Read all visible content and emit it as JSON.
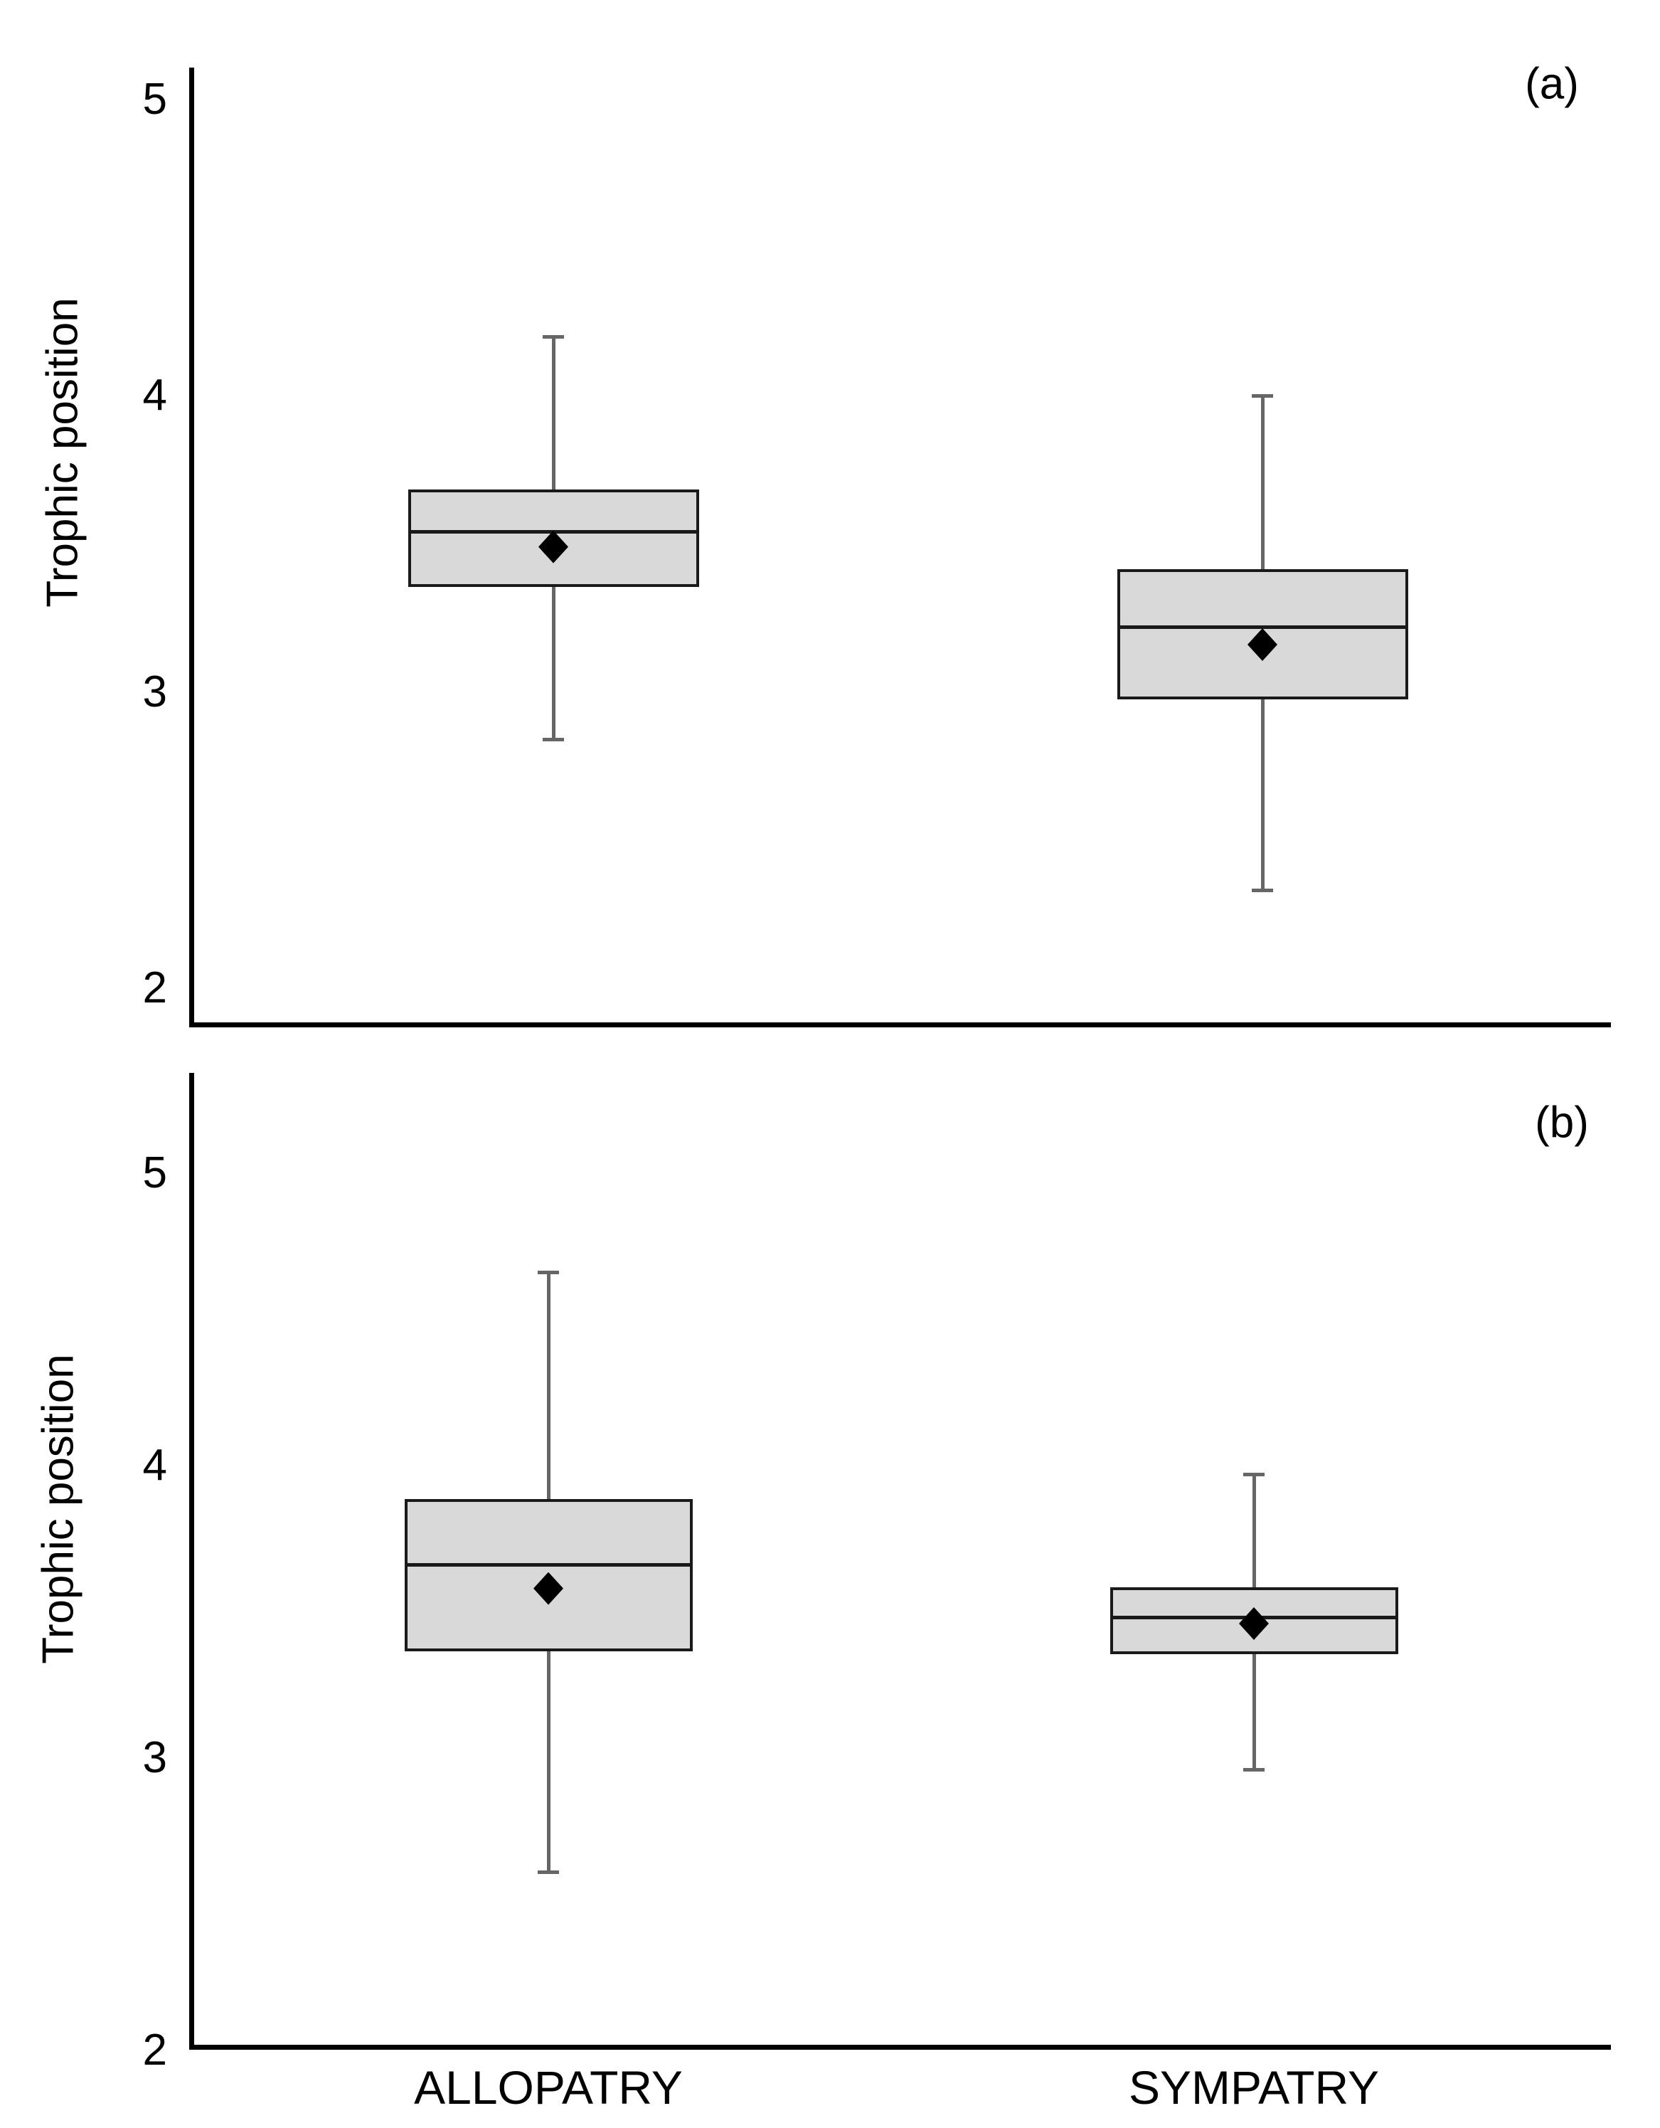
{
  "figure": {
    "background": "#ffffff",
    "description_visible_text_only": true
  },
  "chart_data": [
    {
      "type": "box",
      "panel_label": "(a)",
      "ylabel": "Trophic position",
      "xlabel": "",
      "categories": [
        "ALLOPATRY",
        "SYMPATRY"
      ],
      "x_tick_labels_shown": false,
      "yticks": [
        5,
        4,
        3,
        2
      ],
      "ylim": [
        1.88,
        5.11
      ],
      "grid": false,
      "legend": "none",
      "series": [
        {
          "name": "ALLOPATRY",
          "whisker_low": 2.84,
          "q1": 3.36,
          "median": 3.54,
          "mean": 3.49,
          "q3": 3.68,
          "whisker_high": 4.2
        },
        {
          "name": "SYMPATRY",
          "whisker_low": 2.33,
          "q1": 2.98,
          "median": 3.22,
          "mean": 3.16,
          "q3": 3.41,
          "whisker_high": 4.0
        }
      ],
      "mean_marker": "diamond"
    },
    {
      "type": "box",
      "panel_label": "(b)",
      "ylabel": "Trophic position",
      "xlabel": "",
      "categories": [
        "ALLOPATRY",
        "SYMPATRY"
      ],
      "x_tick_labels_shown": true,
      "yticks": [
        5,
        4,
        3,
        2
      ],
      "ylim": [
        2.0,
        5.34
      ],
      "grid": false,
      "legend": "none",
      "series": [
        {
          "name": "ALLOPATRY",
          "whisker_low": 2.61,
          "q1": 3.37,
          "median": 3.66,
          "mean": 3.58,
          "q3": 3.88,
          "whisker_high": 4.66
        },
        {
          "name": "SYMPATRY",
          "whisker_low": 2.96,
          "q1": 3.36,
          "median": 3.48,
          "mean": 3.46,
          "q3": 3.58,
          "whisker_high": 3.97
        }
      ],
      "mean_marker": "diamond"
    }
  ],
  "style": {
    "box_fill": "#d9d9d9",
    "box_border": "#1a1a1a",
    "median_color": "#1a1a1a",
    "whisker_color": "#666666",
    "mean_color": "#000000",
    "axis_color": "#000000",
    "text_color": "#000000"
  }
}
